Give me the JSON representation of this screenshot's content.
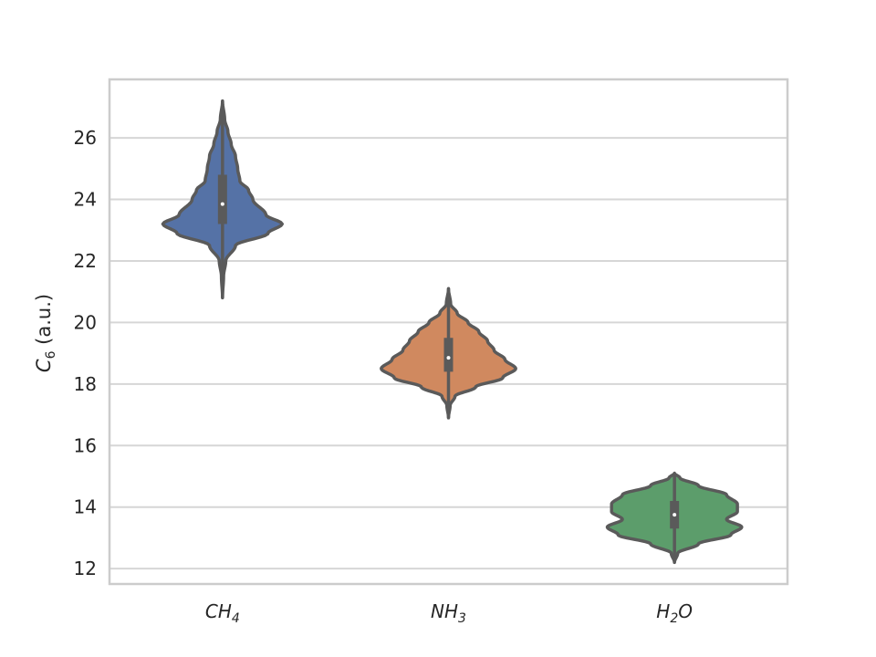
{
  "chart_data": {
    "type": "violin",
    "title": "",
    "xlabel": "",
    "ylabel": {
      "main": "C",
      "sub": "6",
      "unit": " (a.u.)"
    },
    "ylim": [
      11.5,
      27.9
    ],
    "yticks": [
      12,
      14,
      16,
      18,
      20,
      22,
      24,
      26
    ],
    "grid": true,
    "legend": "none",
    "categories": [
      {
        "base": "CH",
        "sub": "4",
        "after": ""
      },
      {
        "base": "NH",
        "sub": "3",
        "after": ""
      },
      {
        "base": "H",
        "sub": "2",
        "after": "O"
      }
    ],
    "series": [
      {
        "color": "#5572a6",
        "min": 20.8,
        "max": 27.2,
        "q1": 23.2,
        "median": 23.85,
        "q3": 24.8,
        "profile": [
          [
            20.8,
            0
          ],
          [
            21.5,
            0.01
          ],
          [
            22.0,
            0.03
          ],
          [
            22.5,
            0.12
          ],
          [
            22.9,
            0.42
          ],
          [
            23.2,
            0.55
          ],
          [
            23.5,
            0.4
          ],
          [
            24.0,
            0.28
          ],
          [
            24.3,
            0.24
          ],
          [
            24.6,
            0.16
          ],
          [
            25.0,
            0.14
          ],
          [
            25.4,
            0.12
          ],
          [
            25.8,
            0.08
          ],
          [
            26.2,
            0.05
          ],
          [
            26.6,
            0.02
          ],
          [
            27.2,
            0
          ]
        ]
      },
      {
        "color": "#d0895f",
        "min": 16.9,
        "max": 21.1,
        "q1": 18.4,
        "median": 18.85,
        "q3": 19.5,
        "profile": [
          [
            16.9,
            0
          ],
          [
            17.3,
            0.015
          ],
          [
            17.6,
            0.06
          ],
          [
            17.9,
            0.25
          ],
          [
            18.2,
            0.5
          ],
          [
            18.5,
            0.62
          ],
          [
            18.8,
            0.52
          ],
          [
            19.1,
            0.42
          ],
          [
            19.4,
            0.36
          ],
          [
            19.7,
            0.28
          ],
          [
            20.0,
            0.18
          ],
          [
            20.3,
            0.08
          ],
          [
            20.6,
            0.02
          ],
          [
            21.1,
            0
          ]
        ]
      },
      {
        "color": "#5c9d6b",
        "min": 12.2,
        "max": 15.1,
        "q1": 13.3,
        "median": 13.75,
        "q3": 14.2,
        "profile": [
          [
            12.2,
            0
          ],
          [
            12.5,
            0.03
          ],
          [
            12.8,
            0.22
          ],
          [
            13.1,
            0.52
          ],
          [
            13.35,
            0.62
          ],
          [
            13.6,
            0.48
          ],
          [
            13.85,
            0.58
          ],
          [
            14.1,
            0.58
          ],
          [
            14.4,
            0.48
          ],
          [
            14.7,
            0.22
          ],
          [
            14.95,
            0.05
          ],
          [
            15.1,
            0
          ]
        ]
      }
    ]
  }
}
